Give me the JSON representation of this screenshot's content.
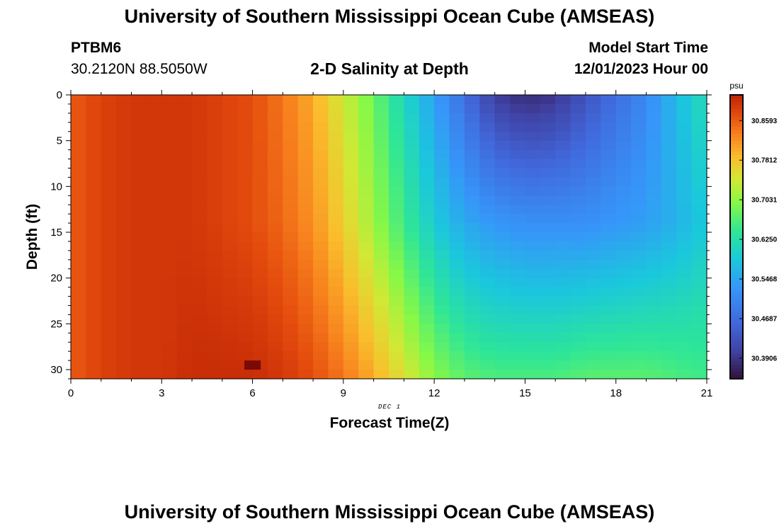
{
  "header": {
    "title": "University of Southern Mississippi Ocean Cube (AMSEAS)",
    "station_id": "PTBM6",
    "station_coords": "30.2120N  88.5050W",
    "plot_title": "2-D Salinity at Depth",
    "model_start_label": "Model Start Time",
    "model_start_value": "12/01/2023 Hour 00"
  },
  "footer": {
    "title": "University of Southern Mississippi Ocean Cube (AMSEAS)"
  },
  "chart_data": {
    "type": "heatmap",
    "title": "2-D Salinity at Depth",
    "xlabel": "Forecast Time(Z)",
    "ylabel": "Depth (ft)",
    "xlim": [
      0,
      21
    ],
    "ylim": [
      0,
      31
    ],
    "x_ticks": [
      0,
      3,
      6,
      9,
      12,
      15,
      18,
      21
    ],
    "y_ticks": [
      0,
      5,
      10,
      15,
      20,
      25,
      30
    ],
    "date_annotation": "DEC 1",
    "colorbar": {
      "unit_label": "psu",
      "tick_labels": [
        "30.8593",
        "30.7812",
        "30.7031",
        "30.6250",
        "30.5468",
        "30.4687",
        "30.3906"
      ],
      "tick_values": [
        30.8593,
        30.7812,
        30.7031,
        30.625,
        30.5468,
        30.4687,
        30.3906
      ],
      "range": [
        30.35,
        30.91
      ]
    },
    "columns_per_hour": 2,
    "rows_per_foot": 1,
    "surface_profile_by_hour": [
      30.86,
      30.88,
      30.89,
      30.89,
      30.89,
      30.88,
      30.87,
      30.84,
      30.8,
      30.74,
      30.68,
      30.61,
      30.54,
      30.47,
      30.4,
      30.38,
      30.39,
      30.43,
      30.47,
      30.51,
      30.57,
      30.62
    ],
    "mid_profile_by_hour": [
      30.86,
      30.88,
      30.89,
      30.89,
      30.89,
      30.88,
      30.87,
      30.85,
      30.82,
      30.77,
      30.71,
      30.65,
      30.59,
      30.55,
      30.53,
      30.52,
      30.52,
      30.52,
      30.53,
      30.54,
      30.56,
      30.59
    ],
    "bottom_profile_by_hour": [
      30.86,
      30.88,
      30.89,
      30.89,
      30.9,
      30.9,
      30.9,
      30.89,
      30.87,
      30.84,
      30.8,
      30.75,
      30.7,
      30.67,
      30.66,
      30.66,
      30.66,
      30.67,
      30.67,
      30.67,
      30.66,
      30.65
    ],
    "anomaly_cell": {
      "hour": 6.0,
      "depth_ft": 29.5,
      "value": 30.93
    }
  }
}
